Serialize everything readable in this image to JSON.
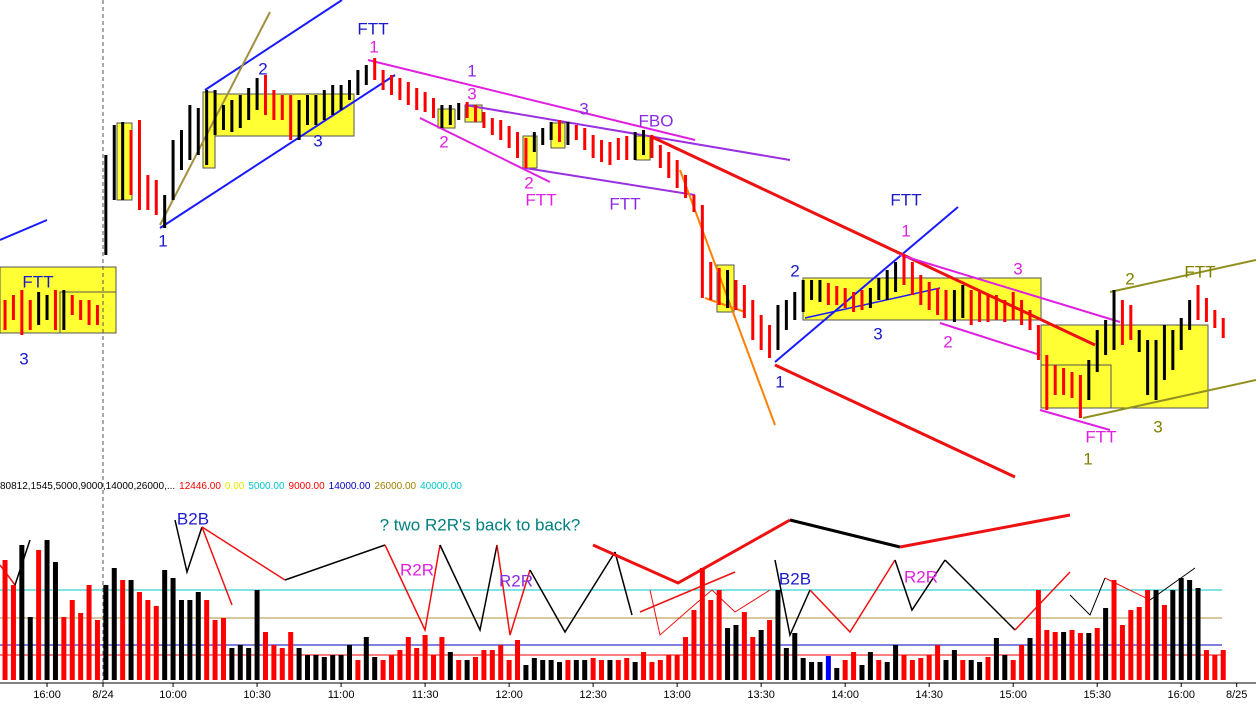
{
  "chart_data": {
    "type": "ohlc",
    "xlim": [
      -0.6,
      148.9
    ],
    "xticks": [
      {
        "value": 5,
        "label": "16:00"
      },
      {
        "value": 11.66,
        "label": "8/24"
      },
      {
        "value": 20,
        "label": "10:00"
      },
      {
        "value": 30,
        "label": "10:30"
      },
      {
        "value": 40,
        "label": "11:00"
      },
      {
        "value": 50,
        "label": "11:30"
      },
      {
        "value": 60,
        "label": "12:00"
      },
      {
        "value": 70,
        "label": "12:30"
      },
      {
        "value": 80,
        "label": "13:00"
      },
      {
        "value": 90,
        "label": "13:30"
      },
      {
        "value": 100,
        "label": "14:00"
      },
      {
        "value": 110,
        "label": "14:30"
      },
      {
        "value": 120,
        "label": "15:00"
      },
      {
        "value": 130,
        "label": "15:30"
      },
      {
        "value": 140,
        "label": "16:00"
      },
      {
        "value": 146.6,
        "label": "8/25"
      }
    ],
    "palette": {
      "r": "#ff0000",
      "k": "#000000",
      "b": "#0000ff"
    },
    "series": [
      {
        "type": "ohlc",
        "ylim": [
          0,
          480
        ],
        "high": [
          180,
          185,
          190,
          180,
          188,
          185,
          190,
          190,
          185,
          180,
          180,
          175,
          325,
          355,
          358,
          350,
          360,
          305,
          300,
          285,
          340,
          350,
          375,
          372,
          390,
          390,
          375,
          380,
          385,
          392,
          402,
          405,
          390,
          385,
          385,
          380,
          385,
          385,
          390,
          395,
          395,
          400,
          410,
          415,
          422,
          410,
          405,
          402,
          398,
          392,
          388,
          382,
          375,
          375,
          377,
          378,
          375,
          368,
          362,
          360,
          354,
          348,
          342,
          348,
          352,
          358,
          360,
          358,
          355,
          352,
          345,
          340,
          338,
          342,
          344,
          348,
          350,
          345,
          335,
          328,
          320,
          305,
          285,
          275,
          218,
          212,
          210,
          200,
          195,
          180,
          165,
          155,
          175,
          180,
          188,
          200,
          200,
          200,
          197,
          194,
          192,
          188,
          190,
          192,
          202,
          210,
          218,
          225,
          218,
          205,
          198,
          192,
          190,
          190,
          195,
          190,
          188,
          185,
          185,
          180,
          188,
          180,
          170,
          155,
          125,
          115,
          112,
          108,
          105,
          120,
          150,
          160,
          190,
          180,
          175,
          150,
          140,
          140,
          155,
          150,
          162,
          180,
          195,
          182,
          170,
          162
        ],
        "low": [
          150,
          160,
          145,
          150,
          155,
          160,
          150,
          150,
          165,
          160,
          155,
          155,
          225,
          280,
          280,
          285,
          270,
          270,
          265,
          252,
          280,
          310,
          320,
          325,
          315,
          345,
          350,
          348,
          352,
          360,
          370,
          365,
          360,
          360,
          340,
          340,
          355,
          355,
          360,
          365,
          370,
          380,
          385,
          395,
          400,
          390,
          385,
          380,
          375,
          370,
          368,
          362,
          352,
          355,
          360,
          362,
          358,
          352,
          345,
          340,
          332,
          322,
          312,
          328,
          335,
          340,
          338,
          335,
          340,
          330,
          322,
          318,
          315,
          320,
          320,
          320,
          325,
          322,
          312,
          302,
          292,
          282,
          268,
          182,
          180,
          175,
          172,
          170,
          162,
          140,
          130,
          122,
          130,
          150,
          160,
          168,
          180,
          178,
          175,
          175,
          172,
          168,
          170,
          172,
          180,
          180,
          188,
          195,
          185,
          175,
          170,
          165,
          160,
          158,
          162,
          155,
          158,
          158,
          160,
          158,
          160,
          155,
          150,
          120,
          70,
          85,
          85,
          82,
          62,
          80,
          108,
          125,
          130,
          135,
          140,
          128,
          85,
          80,
          100,
          110,
          130,
          150,
          160,
          158,
          152,
          142
        ],
        "bar_colors": "rrrrkkrkrrrrkkkrrrrkkkkkkkkkkkkrrrrkkkkkkkkkrrrrrrrrkkkrrrrrrrrkkkrkrrrrrrrkkrrrrrrrrrkrrrrrkkkkkkrrrrrkkkkrrrrrrkkrrrrrrrrrrrrrrkkkkrrkkkkkkkrrrr"
      },
      {
        "type": "volume",
        "ylim": [
          0,
          190
        ],
        "values": [
          120,
          95,
          135,
          63,
          130,
          140,
          118,
          63,
          80,
          67,
          95,
          60,
          95,
          112,
          100,
          100,
          88,
          80,
          74,
          110,
          102,
          80,
          80,
          88,
          80,
          60,
          62,
          32,
          35,
          32,
          90,
          48,
          35,
          32,
          48,
          32,
          25,
          25,
          23,
          25,
          25,
          35,
          20,
          43,
          23,
          20,
          25,
          30,
          43,
          32,
          45,
          25,
          43,
          28,
          20,
          20,
          23,
          30,
          30,
          35,
          20,
          40,
          15,
          22,
          20,
          20,
          18,
          20,
          20,
          20,
          22,
          20,
          20,
          20,
          22,
          18,
          28,
          18,
          20,
          25,
          25,
          43,
          70,
          112,
          80,
          90,
          52,
          55,
          68,
          43,
          50,
          60,
          90,
          32,
          47,
          22,
          18,
          18,
          24,
          12,
          20,
          28,
          15,
          28,
          20,
          18,
          35,
          25,
          20,
          22,
          25,
          35,
          20,
          30,
          20,
          20,
          18,
          23,
          42,
          25,
          20,
          35,
          42,
          90,
          50,
          48,
          48,
          50,
          47,
          47,
          52,
          72,
          100,
          55,
          70,
          73,
          90,
          90,
          75,
          90,
          102,
          100,
          92,
          30,
          25,
          30
        ],
        "bar_colors": "rrkkrkkrrrrrkkrkrrrkkkkkrrrkkkkrrrrkkkkkkkrkkrrrrrrrrkrkrrrrrrkkkkkrkkrrkrrkrrrrrrrrrrkkrrkrkkkkkkbkrrkkrkkrrrrrkkrkkrkkrrkrrrkrrkrkrrrrrkrkkkkrrr"
      }
    ],
    "header": "80812,1545,5000,9000,14000,26000,...",
    "header_values": [
      {
        "text": "12446.00",
        "color": "#ff0000"
      },
      {
        "text": "0.00",
        "color": "#e8e800"
      },
      {
        "text": "5000.00",
        "color": "#00c8c8"
      },
      {
        "text": "9000.00",
        "color": "#ff0000"
      },
      {
        "text": "14000.00",
        "color": "#0000c0"
      },
      {
        "text": "26000.00",
        "color": "#a08000"
      },
      {
        "text": "40000.00",
        "color": "#00c8c8"
      }
    ],
    "annotations": [
      "FTT",
      "1",
      "2",
      "3",
      "1",
      "1",
      "3",
      "2",
      "3",
      "FBO",
      "2",
      "FTT",
      "FTT",
      "FTT",
      "3",
      "FTT",
      "1",
      "2",
      "3",
      "1",
      "3",
      "2",
      "FTT",
      "1",
      "3",
      "2",
      "FTT",
      "B2B",
      "? two R2R's back to back?",
      "R2R",
      "R2R",
      "B2B",
      "R2R"
    ]
  }
}
